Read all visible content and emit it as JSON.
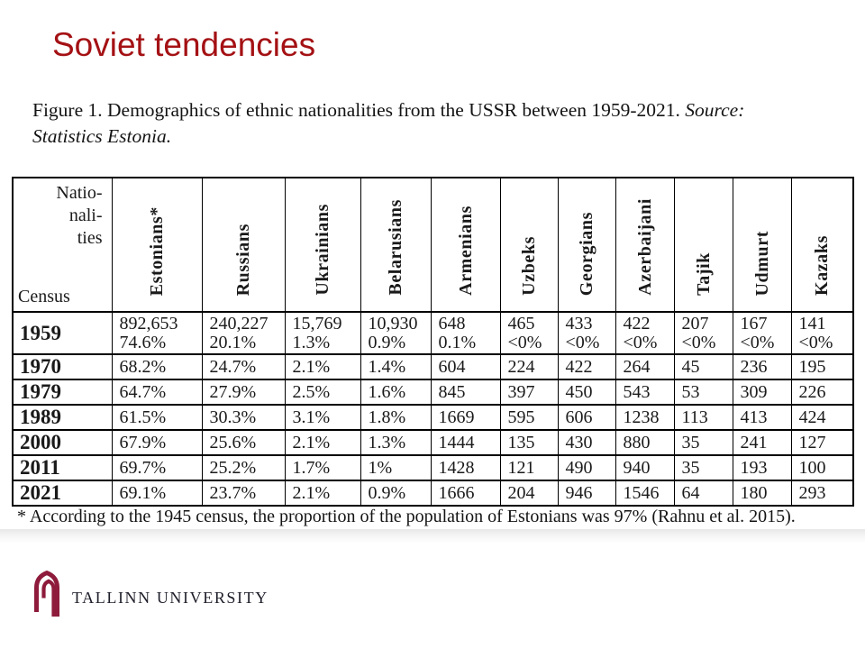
{
  "slide": {
    "title": "Soviet tendencies",
    "colors": {
      "title_red": "#A41114",
      "logo_maroon": "#8E1B3B",
      "logo_text": "#1E1E2A",
      "table_border": "#000000"
    }
  },
  "figure": {
    "caption_main": "Figure 1. Demographics of ethnic nationalities from the USSR between 1959-2021.",
    "caption_source_prefix": "Source:",
    "caption_source_rest": "Statistics Estonia.",
    "footnote": "* According to the 1945 census, the proportion of the population of Estonians was 97% (Rahnu et al. 2015)."
  },
  "logo": {
    "university_name": "TALLINN UNIVERSITY",
    "icon": "gothic-arch-icon"
  },
  "table": {
    "corner": {
      "line1": "Natio-",
      "line2": "nali-",
      "line3": "ties",
      "bottom_label": "Census"
    },
    "columns": [
      "Estonians*",
      "Russians",
      "Ukrainians",
      "Belarusians",
      "Armenians",
      "Uzbeks",
      "Georgians",
      "Azerbaijani",
      "Tajik",
      "Udmurt",
      "Kazaks"
    ],
    "rows": [
      {
        "year": "1959",
        "cells": [
          [
            "892,653",
            "74.6%"
          ],
          [
            "240,227",
            "20.1%"
          ],
          [
            "15,769",
            "1.3%"
          ],
          [
            "10,930",
            "0.9%"
          ],
          [
            "648",
            "0.1%"
          ],
          [
            "465",
            "<0%"
          ],
          [
            "433",
            "<0%"
          ],
          [
            "422",
            "<0%"
          ],
          [
            "207",
            "<0%"
          ],
          [
            "167",
            "<0%"
          ],
          [
            "141",
            "<0%"
          ]
        ]
      },
      {
        "year": "1970",
        "cells": [
          [
            "68.2%"
          ],
          [
            "24.7%"
          ],
          [
            "2.1%"
          ],
          [
            "1.4%"
          ],
          [
            "604"
          ],
          [
            "224"
          ],
          [
            "422"
          ],
          [
            "264"
          ],
          [
            "45"
          ],
          [
            "236"
          ],
          [
            "195"
          ]
        ]
      },
      {
        "year": "1979",
        "cells": [
          [
            "64.7%"
          ],
          [
            "27.9%"
          ],
          [
            "2.5%"
          ],
          [
            "1.6%"
          ],
          [
            "845"
          ],
          [
            "397"
          ],
          [
            "450"
          ],
          [
            "543"
          ],
          [
            "53"
          ],
          [
            "309"
          ],
          [
            "226"
          ]
        ]
      },
      {
        "year": "1989",
        "cells": [
          [
            "61.5%"
          ],
          [
            "30.3%"
          ],
          [
            "3.1%"
          ],
          [
            "1.8%"
          ],
          [
            "1669"
          ],
          [
            "595"
          ],
          [
            "606"
          ],
          [
            "1238"
          ],
          [
            "113"
          ],
          [
            "413"
          ],
          [
            "424"
          ]
        ]
      },
      {
        "year": "2000",
        "cells": [
          [
            "67.9%"
          ],
          [
            "25.6%"
          ],
          [
            "2.1%"
          ],
          [
            "1.3%"
          ],
          [
            "1444"
          ],
          [
            "135"
          ],
          [
            "430"
          ],
          [
            "880"
          ],
          [
            "35"
          ],
          [
            "241"
          ],
          [
            "127"
          ]
        ]
      },
      {
        "year": "2011",
        "cells": [
          [
            "69.7%"
          ],
          [
            "25.2%"
          ],
          [
            "1.7%"
          ],
          [
            "1%"
          ],
          [
            "1428"
          ],
          [
            "121"
          ],
          [
            "490"
          ],
          [
            "940"
          ],
          [
            "35"
          ],
          [
            "193"
          ],
          [
            "100"
          ]
        ]
      },
      {
        "year": "2021",
        "cells": [
          [
            "69.1%"
          ],
          [
            "23.7%"
          ],
          [
            "2.1%"
          ],
          [
            "0.9%"
          ],
          [
            "1666"
          ],
          [
            "204"
          ],
          [
            "946"
          ],
          [
            "1546"
          ],
          [
            "64"
          ],
          [
            "180"
          ],
          [
            "293"
          ]
        ]
      }
    ]
  }
}
